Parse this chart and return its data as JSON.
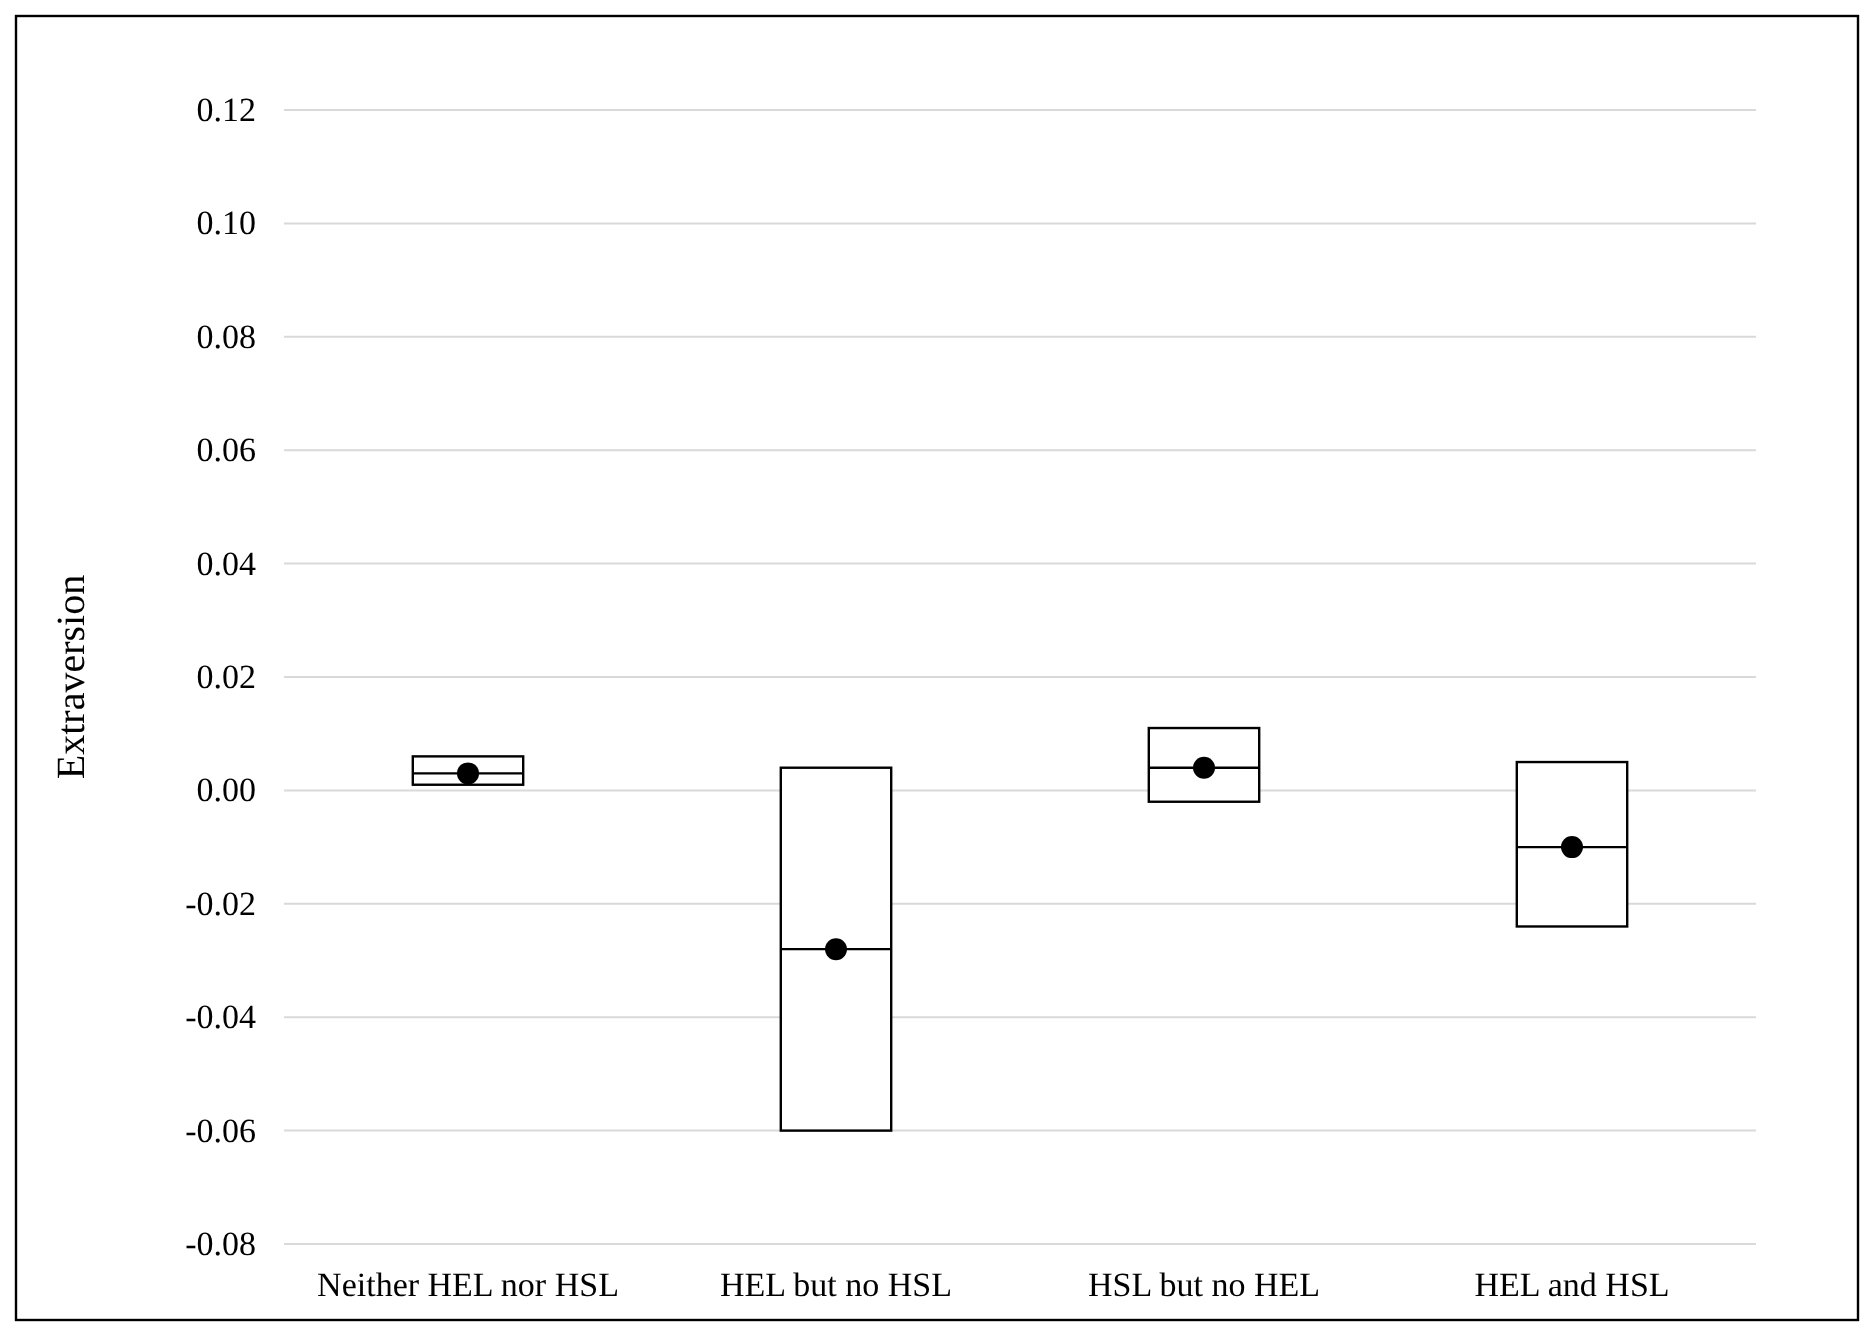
{
  "chart_data": {
    "type": "box",
    "ylabel": "Extraversion",
    "categories": [
      "Neither HEL nor HSL",
      "HEL but no HSL",
      "HSL but no HEL",
      "HEL and HSL"
    ],
    "boxes": [
      {
        "low": 0.001,
        "q1": 0.001,
        "median": 0.003,
        "q3": 0.006,
        "high": 0.006,
        "mean": 0.003
      },
      {
        "low": -0.06,
        "q1": -0.06,
        "median": -0.028,
        "q3": 0.004,
        "high": 0.004,
        "mean": -0.028
      },
      {
        "low": -0.002,
        "q1": -0.002,
        "median": 0.004,
        "q3": 0.011,
        "high": 0.011,
        "mean": 0.004
      },
      {
        "low": -0.024,
        "q1": -0.024,
        "median": -0.01,
        "q3": 0.005,
        "high": 0.005,
        "mean": -0.01
      }
    ],
    "ylim": [
      -0.08,
      0.12
    ],
    "yticks": [
      {
        "value": -0.08,
        "label": "-0.08"
      },
      {
        "value": -0.06,
        "label": "-0.06"
      },
      {
        "value": -0.04,
        "label": "-0.04"
      },
      {
        "value": -0.02,
        "label": "-0.02"
      },
      {
        "value": 0,
        "label": "0.00"
      },
      {
        "value": 0.02,
        "label": "0.02"
      },
      {
        "value": 0.04,
        "label": "0.04"
      },
      {
        "value": 0.06,
        "label": "0.06"
      },
      {
        "value": 0.08,
        "label": "0.08"
      },
      {
        "value": 0.1,
        "label": "0.10"
      },
      {
        "value": 0.12,
        "label": "0.12"
      }
    ],
    "grid": "y"
  }
}
